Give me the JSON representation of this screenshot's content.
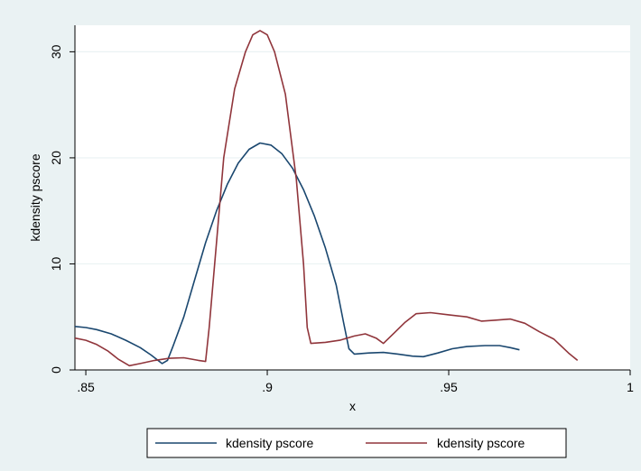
{
  "chart_data": {
    "type": "line",
    "xlabel": "x",
    "ylabel": "kdensity pscore",
    "xlim": [
      0.847,
      1.0
    ],
    "ylim": [
      0,
      32.5
    ],
    "xticks": [
      0.85,
      0.9,
      0.95,
      1.0
    ],
    "xtick_labels": [
      ".85",
      ".9",
      ".95",
      "1"
    ],
    "yticks": [
      0,
      10,
      20,
      30
    ],
    "ytick_labels": [
      "0",
      "10",
      "20",
      "30"
    ],
    "grid": true,
    "legend_position": "bottom",
    "series": [
      {
        "name": "kdensity pscore",
        "color": "#1a476f",
        "points": [
          [
            0.847,
            4.1
          ],
          [
            0.85,
            4.0
          ],
          [
            0.853,
            3.8
          ],
          [
            0.857,
            3.4
          ],
          [
            0.861,
            2.8
          ],
          [
            0.865,
            2.1
          ],
          [
            0.868,
            1.4
          ],
          [
            0.871,
            0.6
          ],
          [
            0.8725,
            0.9
          ],
          [
            0.874,
            2.2
          ],
          [
            0.877,
            5.0
          ],
          [
            0.88,
            8.5
          ],
          [
            0.883,
            12.0
          ],
          [
            0.886,
            15.0
          ],
          [
            0.889,
            17.5
          ],
          [
            0.892,
            19.5
          ],
          [
            0.895,
            20.8
          ],
          [
            0.898,
            21.4
          ],
          [
            0.901,
            21.2
          ],
          [
            0.904,
            20.4
          ],
          [
            0.907,
            19.0
          ],
          [
            0.91,
            17.0
          ],
          [
            0.913,
            14.5
          ],
          [
            0.916,
            11.5
          ],
          [
            0.919,
            8.0
          ],
          [
            0.921,
            4.5
          ],
          [
            0.9225,
            2.0
          ],
          [
            0.924,
            1.5
          ],
          [
            0.928,
            1.6
          ],
          [
            0.932,
            1.65
          ],
          [
            0.936,
            1.5
          ],
          [
            0.94,
            1.3
          ],
          [
            0.943,
            1.25
          ],
          [
            0.947,
            1.6
          ],
          [
            0.951,
            2.0
          ],
          [
            0.955,
            2.2
          ],
          [
            0.96,
            2.3
          ],
          [
            0.964,
            2.3
          ],
          [
            0.967,
            2.1
          ],
          [
            0.9695,
            1.9
          ]
        ]
      },
      {
        "name": "kdensity pscore",
        "color": "#90353b",
        "points": [
          [
            0.847,
            3.0
          ],
          [
            0.85,
            2.8
          ],
          [
            0.853,
            2.4
          ],
          [
            0.856,
            1.8
          ],
          [
            0.859,
            1.0
          ],
          [
            0.862,
            0.4
          ],
          [
            0.865,
            0.6
          ],
          [
            0.869,
            0.9
          ],
          [
            0.873,
            1.1
          ],
          [
            0.877,
            1.15
          ],
          [
            0.881,
            0.9
          ],
          [
            0.883,
            0.8
          ],
          [
            0.884,
            4.0
          ],
          [
            0.886,
            12.0
          ],
          [
            0.888,
            20.0
          ],
          [
            0.891,
            26.5
          ],
          [
            0.894,
            30.0
          ],
          [
            0.896,
            31.6
          ],
          [
            0.898,
            32.0
          ],
          [
            0.9,
            31.6
          ],
          [
            0.902,
            30.0
          ],
          [
            0.905,
            26.0
          ],
          [
            0.908,
            18.0
          ],
          [
            0.91,
            10.0
          ],
          [
            0.911,
            4.0
          ],
          [
            0.912,
            2.5
          ],
          [
            0.916,
            2.6
          ],
          [
            0.92,
            2.8
          ],
          [
            0.924,
            3.2
          ],
          [
            0.927,
            3.4
          ],
          [
            0.93,
            3.0
          ],
          [
            0.932,
            2.5
          ],
          [
            0.935,
            3.5
          ],
          [
            0.938,
            4.5
          ],
          [
            0.941,
            5.3
          ],
          [
            0.945,
            5.4
          ],
          [
            0.95,
            5.2
          ],
          [
            0.955,
            5.0
          ],
          [
            0.959,
            4.6
          ],
          [
            0.963,
            4.7
          ],
          [
            0.967,
            4.8
          ],
          [
            0.971,
            4.4
          ],
          [
            0.975,
            3.6
          ],
          [
            0.979,
            2.9
          ],
          [
            0.983,
            1.6
          ],
          [
            0.9855,
            0.9
          ]
        ]
      }
    ]
  }
}
